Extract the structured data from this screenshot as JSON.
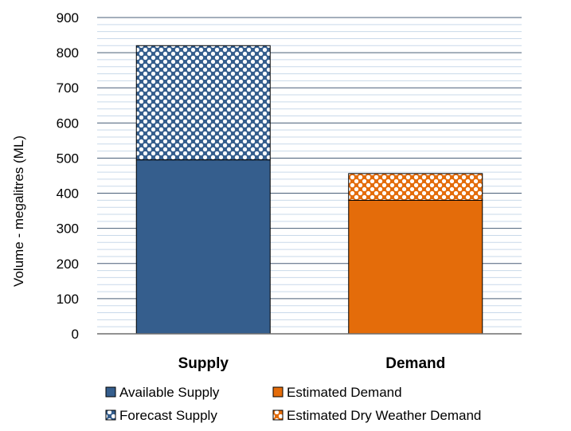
{
  "chart_data": {
    "type": "bar",
    "stacked": true,
    "categories": [
      "Supply",
      "Demand"
    ],
    "ylabel": "Volume - megalitres (ML)",
    "ylim": [
      0,
      900
    ],
    "yticks": [
      0,
      100,
      200,
      300,
      400,
      500,
      600,
      700,
      800,
      900
    ],
    "grid": true,
    "legend_position": "bottom",
    "series": [
      {
        "name": "Available Supply",
        "category": "Supply",
        "base": 0,
        "value": 495,
        "color": "#355E8D",
        "pattern": "solid"
      },
      {
        "name": "Forecast Supply",
        "category": "Supply",
        "base": 495,
        "value": 325,
        "color": "#355E8D",
        "pattern": "dots"
      },
      {
        "name": "Estimated Demand",
        "category": "Demand",
        "base": 0,
        "value": 380,
        "color": "#E46C0A",
        "pattern": "solid"
      },
      {
        "name": "Estimated Dry Weather Demand",
        "category": "Demand",
        "base": 380,
        "value": 76,
        "color": "#E46C0A",
        "pattern": "dots"
      }
    ]
  }
}
